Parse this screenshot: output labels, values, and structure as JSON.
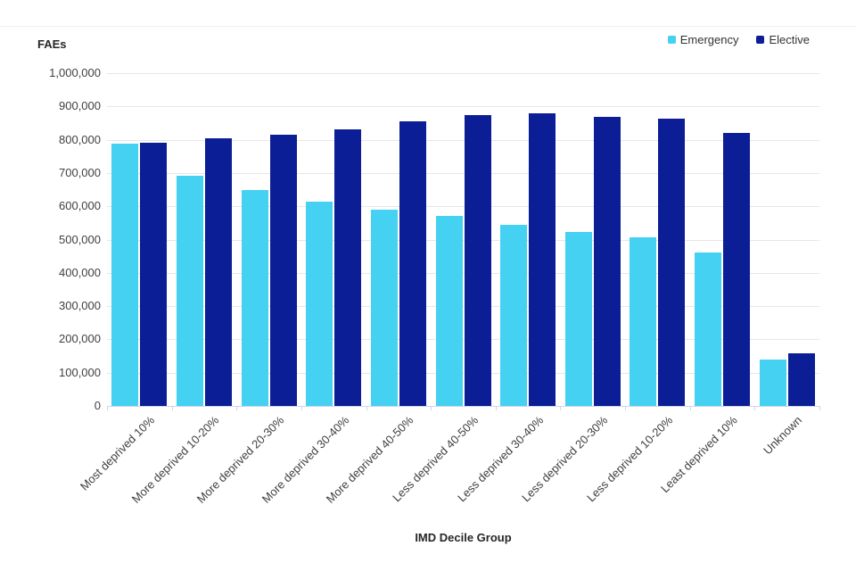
{
  "chart_data": {
    "type": "bar",
    "title": "FAEs",
    "xlabel": "IMD Decile Group",
    "ylabel": "FAEs",
    "ylim": [
      0,
      1000000
    ],
    "ytick_step": 100000,
    "grid": true,
    "legend_position": "top-right",
    "categories": [
      "Most deprived 10%",
      "More deprived 10-20%",
      "More deprived 20-30%",
      "More deprived 30-40%",
      "More deprived 40-50%",
      "Less deprived 40-50%",
      "Less deprived 30-40%",
      "Less deprived 20-30%",
      "Less deprived 10-20%",
      "Least deprived 10%",
      "Unknown"
    ],
    "series": [
      {
        "name": "Emergency",
        "color": "#45D1F2",
        "values": [
          787000,
          692000,
          649000,
          613000,
          590000,
          570000,
          544000,
          523000,
          507000,
          461000,
          139000
        ]
      },
      {
        "name": "Elective",
        "color": "#0B1E96",
        "values": [
          792000,
          805000,
          814000,
          832000,
          855000,
          875000,
          879000,
          868000,
          864000,
          821000,
          157000
        ]
      }
    ]
  },
  "colors": {
    "grid": "#e6e6e6",
    "axis": "#ccd6eb",
    "emergency": "#45D1F2",
    "elective": "#0B1E96",
    "text": "#404040"
  }
}
